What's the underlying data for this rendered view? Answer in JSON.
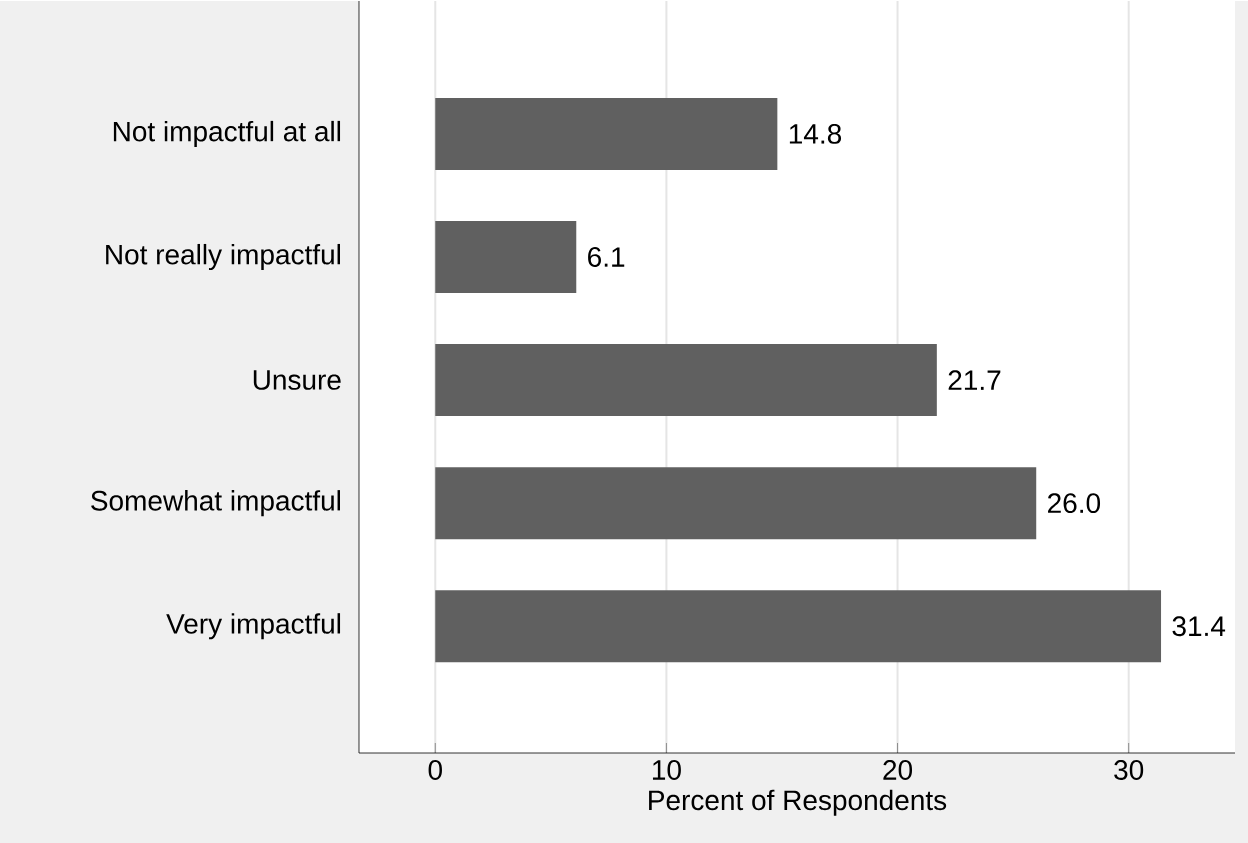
{
  "chart_data": {
    "type": "bar",
    "orientation": "horizontal",
    "xlabel": "Percent of Respondents",
    "categories": [
      "Not impactful at all",
      "Not really impactful",
      "Unsure",
      "Somewhat impactful",
      "Very impactful"
    ],
    "values": [
      14.8,
      6.1,
      21.7,
      26.0,
      31.4
    ],
    "color": "#606060",
    "xlim": [
      -3.3,
      34.6
    ],
    "xticks": [
      0,
      10,
      20,
      30
    ],
    "grid": "x",
    "value_labels": [
      "14.8",
      "6.1",
      "21.7",
      "26.0",
      "31.4"
    ]
  }
}
